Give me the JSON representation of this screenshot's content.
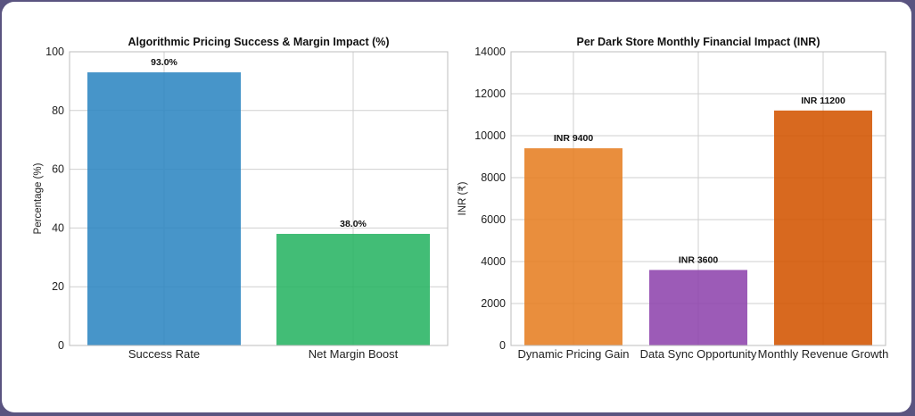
{
  "chart_data": [
    {
      "type": "bar",
      "title": "Algorithmic Pricing Success & Margin Impact (%)",
      "xlabel": "",
      "ylabel": "Percentage (%)",
      "ylim": [
        0,
        100
      ],
      "yticks": [
        0,
        20,
        40,
        60,
        80,
        100
      ],
      "categories": [
        "Success Rate",
        "Net Margin Boost"
      ],
      "values": [
        93.0,
        38.0
      ],
      "data_labels": [
        "93.0%",
        "38.0%"
      ],
      "colors": [
        "#2e86c1",
        "#28b463"
      ],
      "grid": true
    },
    {
      "type": "bar",
      "title": "Per Dark Store Monthly Financial Impact (INR)",
      "xlabel": "",
      "ylabel": "INR (₹)",
      "ylim": [
        0,
        14000
      ],
      "yticks": [
        0,
        2000,
        4000,
        6000,
        8000,
        10000,
        12000,
        14000
      ],
      "categories": [
        "Dynamic Pricing Gain",
        "Data Sync Opportunity",
        "Monthly Revenue Growth"
      ],
      "values": [
        9400,
        3600,
        11200
      ],
      "data_labels": [
        "INR 9400",
        "INR 3600",
        "INR 11200"
      ],
      "colors": [
        "#e67e22",
        "#8e44ad",
        "#d35400"
      ],
      "grid": true
    }
  ]
}
